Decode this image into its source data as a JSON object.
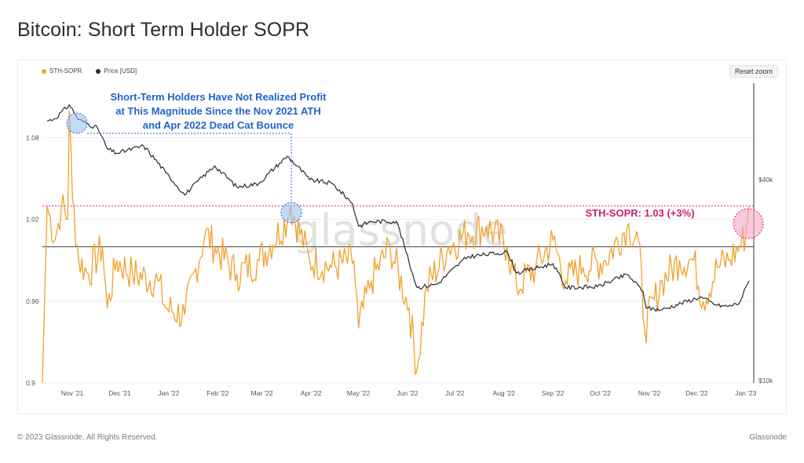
{
  "page": {
    "title": "Bitcoin: Short Term Holder SOPR",
    "footer_left": "© 2023 Glassnode. All Rights Reserved.",
    "footer_right": "Glassnode",
    "reset_zoom": "Reset zoom",
    "watermark": "glassnode"
  },
  "colors": {
    "sopr": "#f2a12e",
    "price": "#2b2b2b",
    "annotation_blue": "#2463c8",
    "annotation_pink": "#cc1f6e",
    "highlight_blue": "#9ec2ee",
    "highlight_pink": "#f4a7c6"
  },
  "chart_data": {
    "type": "line",
    "title": "Bitcoin: Short Term Holder SOPR",
    "xlabel": "",
    "ylabel": "",
    "x_ticks": [
      "Nov '21",
      "Dec '21",
      "Jan '22",
      "Feb '22",
      "Mar '22",
      "Apr '22",
      "May '22",
      "Jun '22",
      "Jul '22",
      "Aug '22",
      "Sep '22",
      "Oct '22",
      "Nov '22",
      "Dec '22",
      "Jan '23"
    ],
    "y_left_ticks": [
      0.9,
      0.96,
      1.02,
      1.08
    ],
    "y_left_range": [
      0.9,
      1.12
    ],
    "y_right_ticks": [
      "$10k",
      "$40k"
    ],
    "y_right_scale": "log",
    "legend_position": "top-left",
    "grid": "horizontal",
    "baseline": 1.0,
    "series": [
      {
        "name": "STH-SOPR",
        "axis": "left",
        "x": [
          "2021-10-27",
          "2021-11-01",
          "2021-11-05",
          "2021-11-09",
          "2021-11-10",
          "2021-11-12",
          "2021-11-16",
          "2021-11-22",
          "2021-12-01",
          "2021-12-04",
          "2021-12-10",
          "2021-12-20",
          "2022-01-05",
          "2022-01-10",
          "2022-01-22",
          "2022-02-04",
          "2022-02-10",
          "2022-02-24",
          "2022-03-10",
          "2022-03-28",
          "2022-03-30",
          "2022-04-11",
          "2022-04-25",
          "2022-05-09",
          "2022-05-12",
          "2022-05-20",
          "2022-06-01",
          "2022-06-13",
          "2022-06-18",
          "2022-06-24",
          "2022-07-08",
          "2022-07-20",
          "2022-08-01",
          "2022-08-14",
          "2022-08-20",
          "2022-09-01",
          "2022-09-12",
          "2022-09-20",
          "2022-10-01",
          "2022-10-15",
          "2022-10-29",
          "2022-11-05",
          "2022-11-09",
          "2022-11-20",
          "2022-12-01",
          "2022-12-10",
          "2022-12-16",
          "2022-12-25",
          "2023-01-01",
          "2023-01-08",
          "2023-01-12",
          "2023-01-14"
        ],
        "values": [
          1.03,
          1.005,
          1.03,
          1.02,
          1.1,
          1.035,
          0.99,
          0.98,
          1.0,
          0.955,
          0.99,
          0.98,
          0.975,
          0.955,
          0.95,
          1.01,
          1.0,
          0.98,
          0.99,
          1.02,
          1.03,
          0.99,
          0.985,
          0.99,
          0.94,
          0.975,
          1.0,
          0.955,
          0.91,
          0.97,
          1.0,
          1.01,
          1.015,
          1.0,
          0.97,
          0.985,
          1.005,
          0.975,
          0.985,
          0.99,
          1.015,
          1.005,
          0.94,
          0.975,
          0.99,
          0.99,
          0.96,
          0.985,
          0.99,
          1.0,
          1.01,
          1.03
        ]
      },
      {
        "name": "Price [USD]",
        "axis": "right",
        "x": [
          "2021-10-27",
          "2021-11-01",
          "2021-11-10",
          "2021-11-16",
          "2021-11-28",
          "2021-12-04",
          "2021-12-10",
          "2021-12-27",
          "2022-01-10",
          "2022-01-22",
          "2022-02-10",
          "2022-02-24",
          "2022-03-10",
          "2022-03-28",
          "2022-04-11",
          "2022-04-25",
          "2022-05-08",
          "2022-05-12",
          "2022-05-20",
          "2022-06-05",
          "2022-06-13",
          "2022-06-18",
          "2022-07-01",
          "2022-07-20",
          "2022-08-14",
          "2022-08-20",
          "2022-09-12",
          "2022-09-20",
          "2022-10-10",
          "2022-10-29",
          "2022-11-08",
          "2022-11-10",
          "2022-11-20",
          "2022-12-14",
          "2022-12-25",
          "2023-01-01",
          "2023-01-08",
          "2023-01-14"
        ],
        "values": [
          60000,
          61000,
          67000,
          60500,
          57000,
          49500,
          48000,
          50500,
          42000,
          36000,
          44000,
          38000,
          39000,
          47000,
          40000,
          39000,
          34000,
          29000,
          30000,
          30000,
          22500,
          19000,
          19500,
          23500,
          24300,
          21000,
          22400,
          19000,
          19100,
          20800,
          18500,
          16500,
          16300,
          17800,
          16800,
          16700,
          17100,
          19900
        ]
      }
    ],
    "annotations": [
      {
        "text_lines": [
          "Short-Term Holders Have Not Realized Profit",
          "at This Magnitude Since the Nov 2021 ATH",
          "and Apr 2022 Dead Cat Bounce"
        ]
      },
      {
        "text": "STH-SOPR: 1.03 (+3%)"
      }
    ]
  }
}
